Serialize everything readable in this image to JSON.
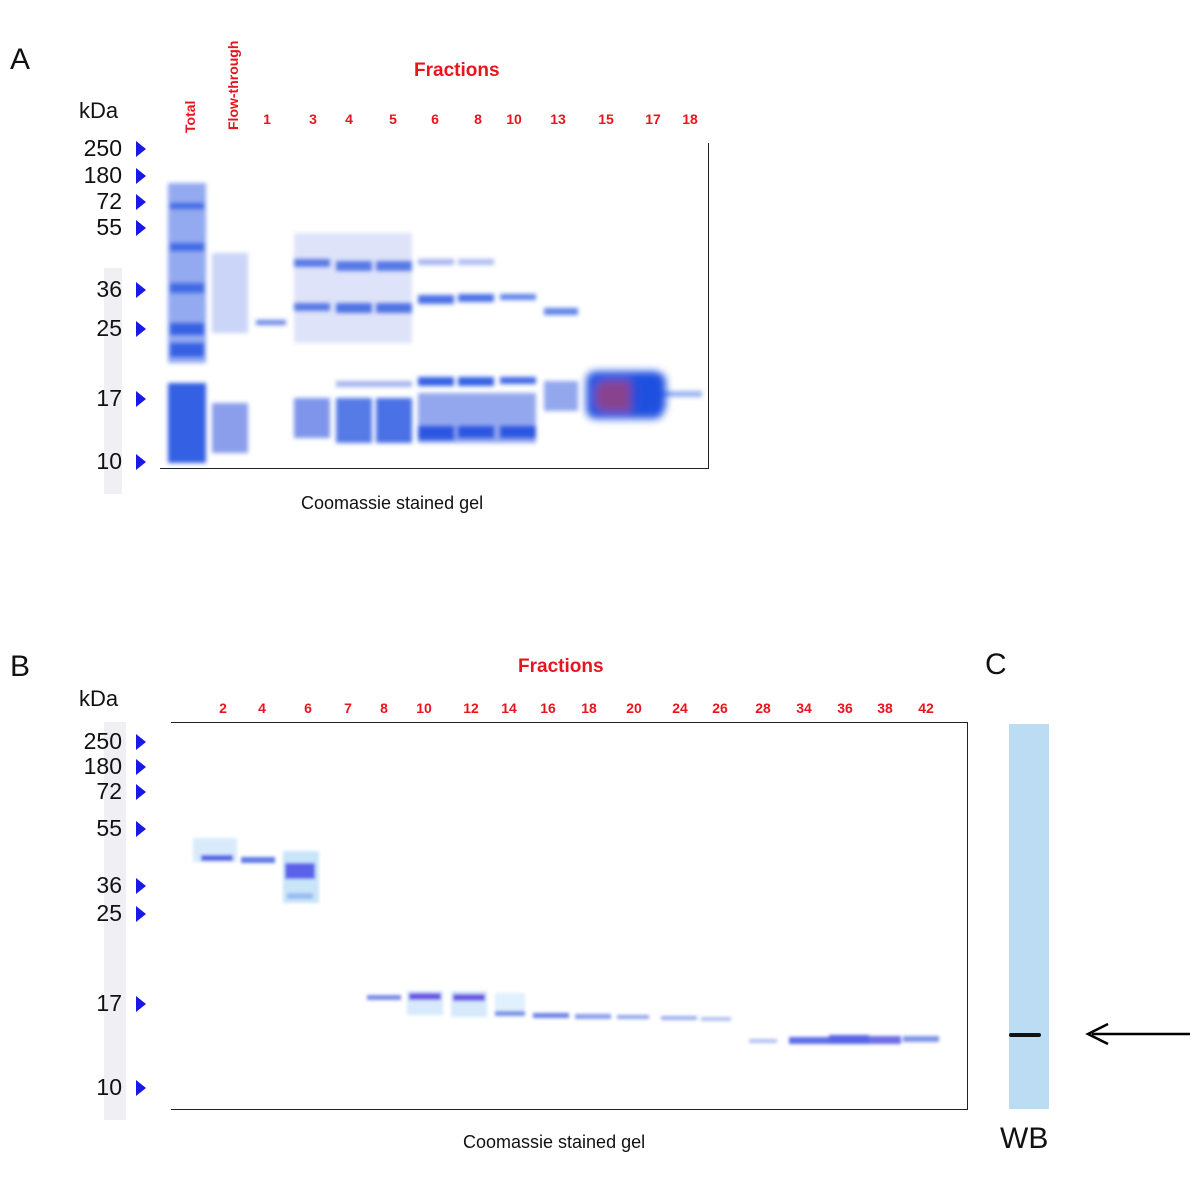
{
  "panel_a": {
    "letter": "A",
    "unit_label": "kDa",
    "markers": [
      "250",
      "180",
      "72",
      "55",
      "36",
      "25",
      "17",
      "10"
    ],
    "lane_labels_rotated": [
      "Total",
      "Flow-through"
    ],
    "fractions_title": "Fractions",
    "fraction_labels": [
      "1",
      "3",
      "4",
      "5",
      "6",
      "8",
      "10",
      "13",
      "15",
      "17",
      "18"
    ],
    "caption": "Coomassie stained gel"
  },
  "panel_b": {
    "letter": "B",
    "unit_label": "kDa",
    "markers": [
      "250",
      "180",
      "72",
      "55",
      "36",
      "25",
      "17",
      "10"
    ],
    "fractions_title": "Fractions",
    "fraction_labels": [
      "2",
      "4",
      "6",
      "7",
      "8",
      "10",
      "12",
      "14",
      "16",
      "18",
      "20",
      "24",
      "26",
      "28",
      "34",
      "36",
      "38",
      "42"
    ],
    "caption": "Coomassie stained gel"
  },
  "panel_c": {
    "letter": "C",
    "caption": "WB"
  },
  "colors": {
    "label_red": "#e8141e",
    "marker_arrow_blue": "#1818e8",
    "coomassie_blue": "#2a5ae0",
    "wb_strip": "#bcdcf4"
  }
}
